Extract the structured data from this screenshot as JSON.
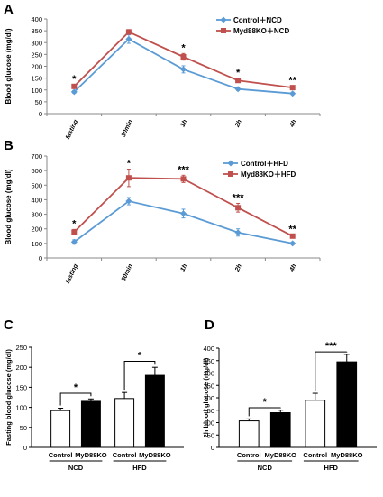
{
  "chart_data": [
    {
      "panel": "A",
      "type": "line",
      "ylabel": "Blood glucose (mg/dl)",
      "ylim": [
        0,
        400
      ],
      "yticks": [
        0,
        50,
        100,
        150,
        200,
        250,
        300,
        350,
        400
      ],
      "categories": [
        "fasting",
        "30min",
        "1h",
        "2h",
        "4h"
      ],
      "series": [
        {
          "name": "Control＋NCD",
          "color": "#5b9bd5",
          "marker": "diamond",
          "values": [
            92,
            315,
            187,
            104,
            85
          ],
          "errors": [
            6,
            18,
            15,
            6,
            5
          ]
        },
        {
          "name": "Myd88KO＋NCD",
          "color": "#c0504d",
          "marker": "square",
          "values": [
            115,
            345,
            240,
            140,
            110
          ],
          "errors": [
            6,
            10,
            14,
            8,
            6
          ]
        }
      ],
      "significance": [
        "*",
        "",
        "*",
        "*",
        "**"
      ],
      "legend_position": "top-right"
    },
    {
      "panel": "B",
      "type": "line",
      "ylabel": "Blood glucose (mg/dl)",
      "ylim": [
        0,
        700
      ],
      "yticks": [
        0,
        100,
        200,
        300,
        400,
        500,
        600,
        700
      ],
      "categories": [
        "fasting",
        "30min",
        "1h",
        "2h",
        "4h"
      ],
      "series": [
        {
          "name": "Control＋HFD",
          "color": "#5b9bd5",
          "marker": "diamond",
          "values": [
            110,
            390,
            305,
            175,
            100
          ],
          "errors": [
            15,
            25,
            30,
            25,
            8
          ]
        },
        {
          "name": "Myd88KO＋HFD",
          "color": "#c0504d",
          "marker": "square",
          "values": [
            178,
            550,
            543,
            345,
            150
          ],
          "errors": [
            18,
            60,
            25,
            30,
            8
          ]
        }
      ],
      "significance": [
        "*",
        "*",
        "***",
        "***",
        "**"
      ],
      "legend_position": "top-right"
    },
    {
      "panel": "C",
      "type": "bar",
      "ylabel": "Fasting blood glucose (mg/dl)",
      "ylim": [
        0,
        250
      ],
      "yticks": [
        0,
        50,
        100,
        150,
        200,
        250
      ],
      "bars": [
        {
          "label": "Control",
          "group": "NCD",
          "value": 92,
          "error": 6,
          "fill": "#ffffff"
        },
        {
          "label": "MyD88KO",
          "group": "NCD",
          "value": 115,
          "error": 6,
          "fill": "#000000"
        },
        {
          "label": "Control",
          "group": "HFD",
          "value": 122,
          "error": 15,
          "fill": "#ffffff"
        },
        {
          "label": "MyD88KO",
          "group": "HFD",
          "value": 180,
          "error": 20,
          "fill": "#000000"
        }
      ],
      "groups": [
        "NCD",
        "HFD"
      ],
      "significance": [
        {
          "pair": [
            0,
            1
          ],
          "label": "*",
          "y": 135
        },
        {
          "pair": [
            2,
            3
          ],
          "label": "*",
          "y": 215
        }
      ]
    },
    {
      "panel": "D",
      "type": "bar",
      "ylabel": "2h blood glucose (mg/dl)",
      "ylim": [
        0,
        400
      ],
      "yticks": [
        0,
        50,
        100,
        150,
        200,
        250,
        300,
        350,
        400
      ],
      "bars": [
        {
          "label": "Control",
          "group": "NCD",
          "value": 107,
          "error": 8,
          "fill": "#ffffff"
        },
        {
          "label": "MyD88KO",
          "group": "NCD",
          "value": 140,
          "error": 10,
          "fill": "#000000"
        },
        {
          "label": "Control",
          "group": "HFD",
          "value": 190,
          "error": 28,
          "fill": "#ffffff"
        },
        {
          "label": "MyD88KO",
          "group": "HFD",
          "value": 345,
          "error": 30,
          "fill": "#000000"
        }
      ],
      "groups": [
        "NCD",
        "HFD"
      ],
      "significance": [
        {
          "pair": [
            0,
            1
          ],
          "label": "*",
          "y": 160
        },
        {
          "pair": [
            2,
            3
          ],
          "label": "***",
          "y": 385
        }
      ]
    }
  ]
}
